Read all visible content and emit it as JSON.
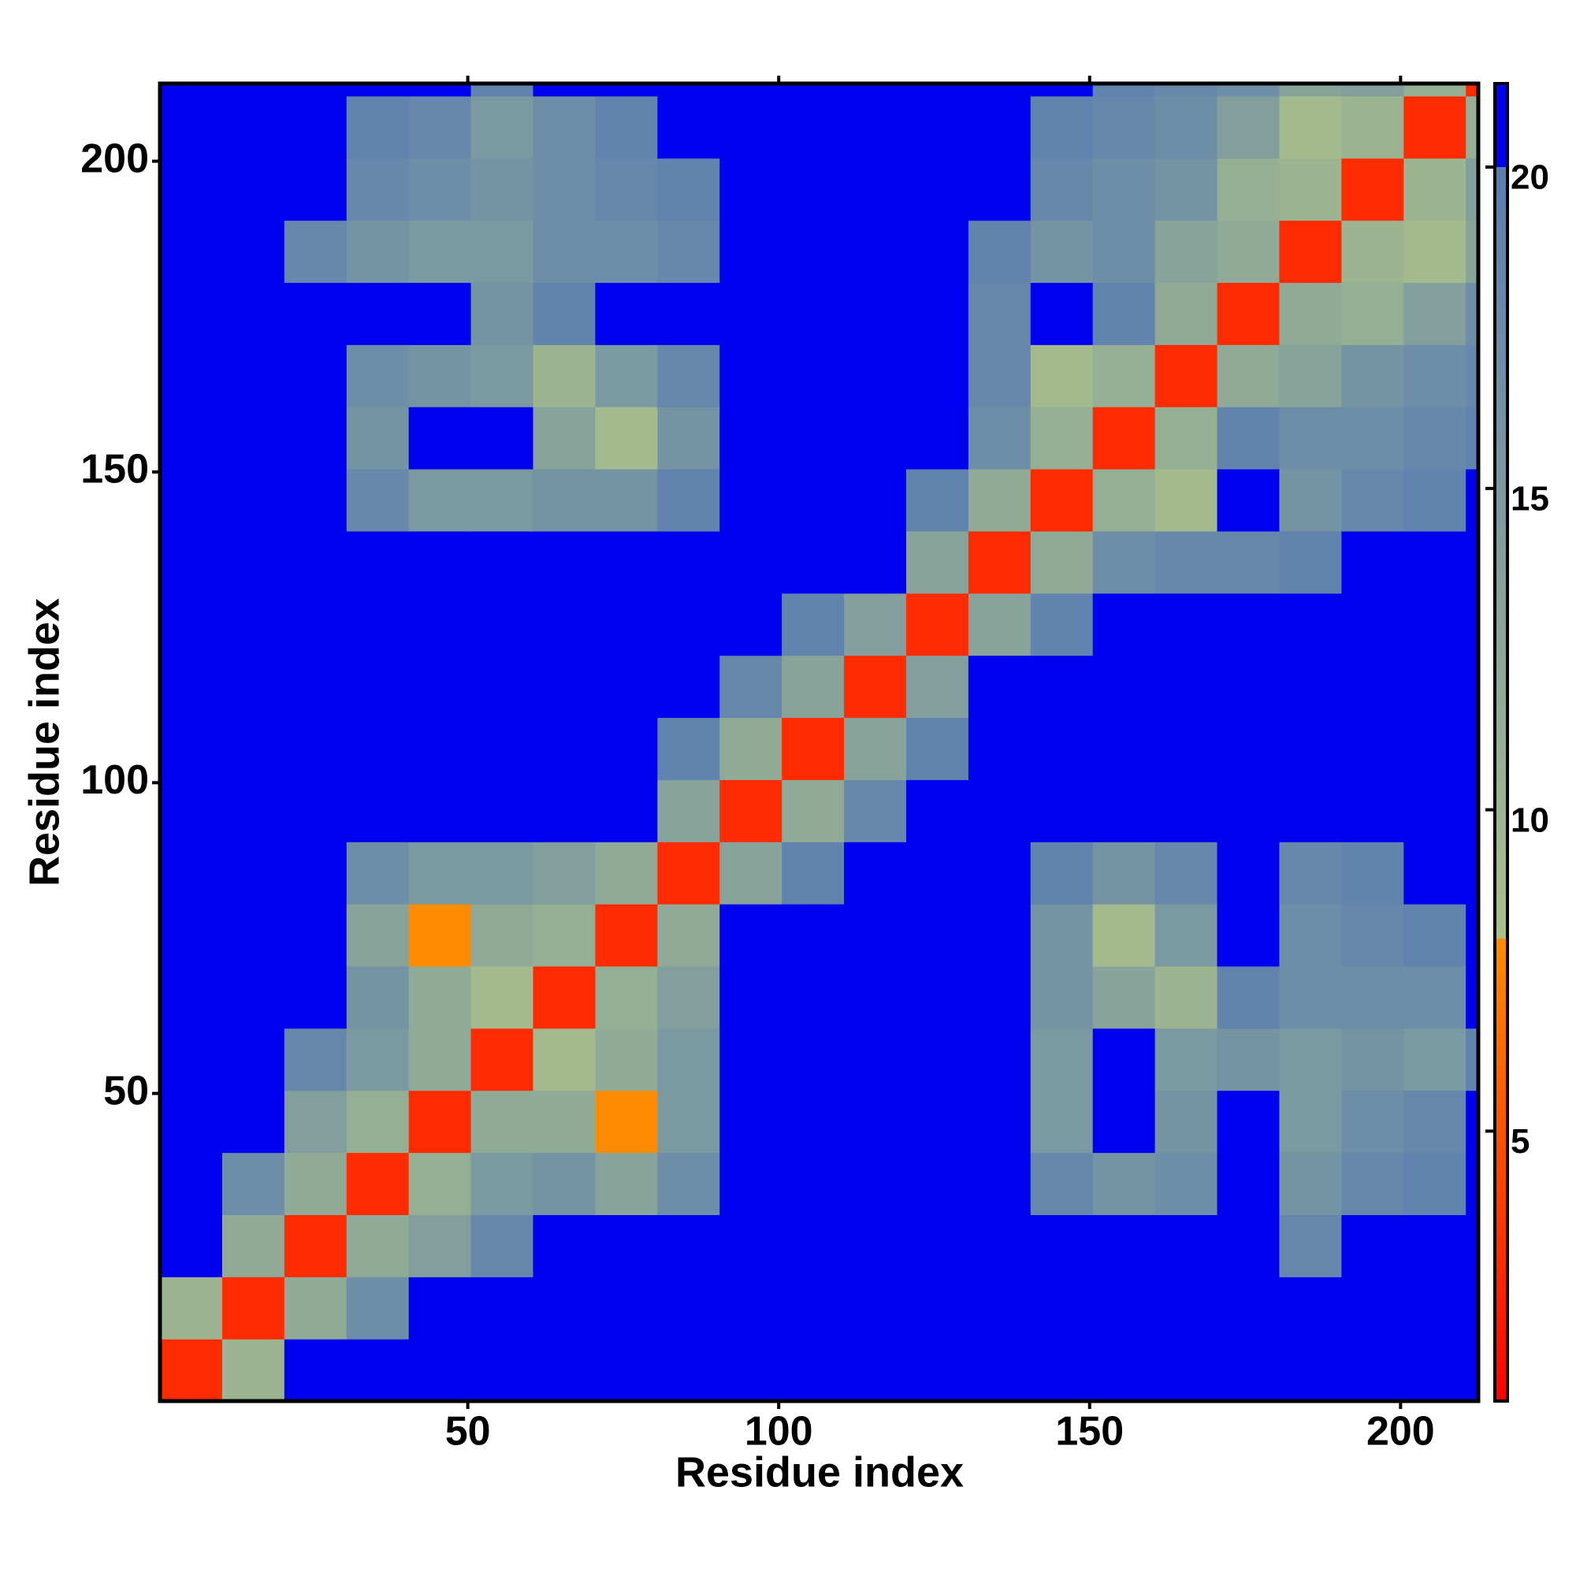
{
  "chart_data": {
    "type": "heatmap",
    "x_label": "Residue index",
    "y_label": "Residue index",
    "x_bins": [
      0.5,
      10.5,
      20.5,
      30.5,
      40.5,
      50.5,
      60.5,
      70.5,
      80.5,
      90.5,
      100.5,
      110.5,
      120.5,
      130.5,
      140.5,
      150.5,
      160.5,
      170.5,
      180.5,
      190.5,
      200.5,
      210.5,
      212.5
    ],
    "y_bins": [
      0.5,
      10.5,
      20.5,
      30.5,
      40.5,
      50.5,
      60.5,
      70.5,
      80.5,
      90.5,
      100.5,
      110.5,
      120.5,
      130.5,
      140.5,
      150.5,
      160.5,
      170.5,
      180.5,
      190.5,
      200.5,
      210.5,
      212.5
    ],
    "z": [
      [
        3,
        10,
        21,
        21,
        21,
        21,
        21,
        21,
        21,
        21,
        21,
        21,
        21,
        21,
        21,
        21,
        21,
        21,
        21,
        21,
        21,
        21
      ],
      [
        10,
        3,
        12,
        17,
        21,
        21,
        21,
        21,
        21,
        21,
        21,
        21,
        21,
        21,
        21,
        21,
        21,
        21,
        21,
        21,
        21,
        21
      ],
      [
        21,
        12,
        3,
        12,
        14,
        18,
        21,
        21,
        21,
        21,
        21,
        21,
        21,
        21,
        21,
        21,
        21,
        21,
        18,
        21,
        21,
        21
      ],
      [
        21,
        17,
        12,
        3,
        11,
        15,
        16,
        13,
        17,
        21,
        21,
        21,
        21,
        21,
        18,
        16,
        17,
        21,
        16,
        18,
        19,
        21
      ],
      [
        21,
        21,
        14,
        11,
        3,
        12,
        12,
        8,
        15,
        21,
        21,
        21,
        21,
        21,
        15,
        21,
        16,
        21,
        15,
        17,
        18,
        21
      ],
      [
        21,
        21,
        18,
        15,
        12,
        3,
        9,
        12,
        15,
        21,
        21,
        21,
        21,
        21,
        15,
        21,
        15,
        16,
        15,
        16,
        15,
        19
      ],
      [
        21,
        21,
        21,
        16,
        12,
        9,
        3,
        11,
        14,
        21,
        21,
        21,
        21,
        21,
        16,
        13,
        10,
        19,
        17,
        17,
        17,
        21
      ],
      [
        21,
        21,
        21,
        13,
        8,
        12,
        11,
        3,
        12,
        21,
        21,
        21,
        21,
        21,
        16,
        9,
        15,
        21,
        17,
        18,
        19,
        21
      ],
      [
        21,
        21,
        21,
        17,
        15,
        15,
        14,
        12,
        3,
        13,
        19,
        21,
        21,
        21,
        19,
        16,
        18,
        21,
        18,
        19,
        21,
        21
      ],
      [
        21,
        21,
        21,
        21,
        21,
        21,
        21,
        21,
        13,
        3,
        12,
        18,
        21,
        21,
        21,
        21,
        21,
        21,
        21,
        21,
        21,
        21
      ],
      [
        21,
        21,
        21,
        21,
        21,
        21,
        21,
        21,
        19,
        12,
        3,
        13,
        19,
        21,
        21,
        21,
        21,
        21,
        21,
        21,
        21,
        21
      ],
      [
        21,
        21,
        21,
        21,
        21,
        21,
        21,
        21,
        21,
        18,
        13,
        3,
        14,
        21,
        21,
        21,
        21,
        21,
        21,
        21,
        21,
        21
      ],
      [
        21,
        21,
        21,
        21,
        21,
        21,
        21,
        21,
        21,
        21,
        19,
        14,
        3,
        13,
        19,
        21,
        21,
        21,
        21,
        21,
        21,
        21
      ],
      [
        21,
        21,
        21,
        21,
        21,
        21,
        21,
        21,
        21,
        21,
        21,
        21,
        13,
        3,
        12,
        17,
        18,
        18,
        19,
        21,
        21,
        21
      ],
      [
        21,
        21,
        21,
        18,
        15,
        15,
        16,
        16,
        19,
        21,
        21,
        21,
        19,
        12,
        3,
        11,
        9,
        21,
        16,
        18,
        19,
        21
      ],
      [
        21,
        21,
        21,
        16,
        21,
        21,
        13,
        9,
        16,
        21,
        21,
        21,
        21,
        17,
        11,
        3,
        11,
        19,
        17,
        17,
        18,
        19
      ],
      [
        21,
        21,
        21,
        17,
        16,
        15,
        10,
        15,
        18,
        21,
        21,
        21,
        21,
        18,
        9,
        11,
        3,
        12,
        13,
        16,
        17,
        18
      ],
      [
        21,
        21,
        21,
        21,
        21,
        16,
        19,
        21,
        21,
        21,
        21,
        21,
        21,
        18,
        21,
        19,
        12,
        3,
        12,
        11,
        14,
        17
      ],
      [
        21,
        21,
        18,
        16,
        15,
        15,
        17,
        17,
        18,
        21,
        21,
        21,
        21,
        19,
        16,
        17,
        13,
        12,
        3,
        10,
        9,
        13
      ],
      [
        21,
        21,
        21,
        18,
        17,
        16,
        17,
        18,
        19,
        21,
        21,
        21,
        21,
        21,
        18,
        17,
        16,
        11,
        10,
        3,
        10,
        14
      ],
      [
        21,
        21,
        21,
        19,
        18,
        15,
        17,
        19,
        21,
        21,
        21,
        21,
        21,
        21,
        19,
        18,
        17,
        14,
        9,
        10,
        3,
        11
      ],
      [
        21,
        21,
        21,
        21,
        21,
        19,
        21,
        21,
        21,
        21,
        21,
        21,
        21,
        21,
        21,
        19,
        18,
        17,
        13,
        14,
        11,
        3
      ]
    ],
    "xlim": [
      0.5,
      212.5
    ],
    "ylim": [
      0.5,
      212.5
    ],
    "xticks": [
      50,
      100,
      150,
      200
    ],
    "yticks": [
      50,
      100,
      150,
      200
    ],
    "zlim": [
      0.8,
      21.3
    ],
    "zticks": [
      5,
      10,
      15,
      20
    ],
    "colorscale": [
      [
        0.8,
        "#ff0000"
      ],
      [
        8,
        "#ff8c00"
      ],
      [
        8,
        "#a9c08a"
      ],
      [
        20,
        "#5a7db0"
      ],
      [
        20,
        "#0000f0"
      ],
      [
        21.3,
        "#0000f0"
      ]
    ]
  }
}
